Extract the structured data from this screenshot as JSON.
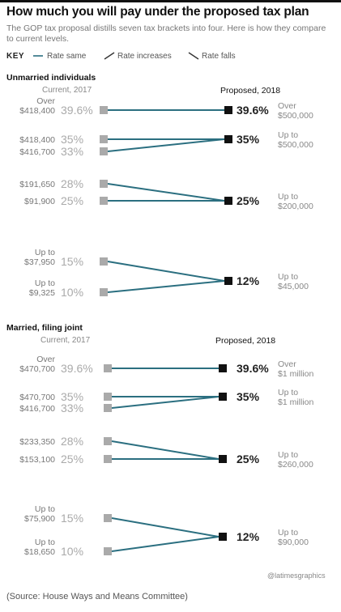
{
  "title": "How much you will pay under the proposed tax plan",
  "subtitle": "The GOP tax proposal distills seven tax brackets into four. Here is how they compare to current levels.",
  "key": {
    "label": "KEY",
    "same": "Rate same",
    "increase": "Rate increases",
    "fall": "Rate falls"
  },
  "colors": {
    "line": "#2b6f80",
    "current_marker": "#aaaaaa",
    "proposed_marker": "#111111"
  },
  "source": "(Source: House Ways and Means Committee)",
  "credit": "@latimesgraphics",
  "chart_data": [
    {
      "type": "slope",
      "title": "Unmarried individuals",
      "current_label": "Current, 2017",
      "proposed_label": "Proposed, 2018",
      "current": [
        {
          "rate": "39.6%",
          "rate_value": 39.6,
          "threshold_lines": [
            "Over",
            "$418,400"
          ]
        },
        {
          "rate": "35%",
          "rate_value": 35,
          "threshold_lines": [
            "$418,400"
          ]
        },
        {
          "rate": "33%",
          "rate_value": 33,
          "threshold_lines": [
            "$416,700"
          ]
        },
        {
          "rate": "28%",
          "rate_value": 28,
          "threshold_lines": [
            "$191,650"
          ]
        },
        {
          "rate": "25%",
          "rate_value": 25,
          "threshold_lines": [
            "$91,900"
          ]
        },
        {
          "rate": "15%",
          "rate_value": 15,
          "threshold_lines": [
            "Up to",
            "$37,950"
          ]
        },
        {
          "rate": "10%",
          "rate_value": 10,
          "threshold_lines": [
            "Up to",
            "$9,325"
          ]
        }
      ],
      "proposed": [
        {
          "rate": "39.6%",
          "rate_value": 39.6,
          "income_lines": [
            "Over",
            "$500,000"
          ]
        },
        {
          "rate": "35%",
          "rate_value": 35,
          "income_lines": [
            "Up to",
            "$500,000"
          ]
        },
        {
          "rate": "25%",
          "rate_value": 25,
          "income_lines": [
            "Up to",
            "$200,000"
          ]
        },
        {
          "rate": "12%",
          "rate_value": 12,
          "income_lines": [
            "Up to",
            "$45,000"
          ]
        }
      ],
      "links": [
        [
          0,
          0
        ],
        [
          1,
          1
        ],
        [
          2,
          1
        ],
        [
          3,
          2
        ],
        [
          4,
          2
        ],
        [
          5,
          3
        ],
        [
          6,
          3
        ]
      ]
    },
    {
      "type": "slope",
      "title": "Married, filing joint",
      "current_label": "Current, 2017",
      "proposed_label": "Proposed, 2018",
      "current": [
        {
          "rate": "39.6%",
          "rate_value": 39.6,
          "threshold_lines": [
            "Over",
            "$470,700"
          ]
        },
        {
          "rate": "35%",
          "rate_value": 35,
          "threshold_lines": [
            "$470,700"
          ]
        },
        {
          "rate": "33%",
          "rate_value": 33,
          "threshold_lines": [
            "$416,700"
          ]
        },
        {
          "rate": "28%",
          "rate_value": 28,
          "threshold_lines": [
            "$233,350"
          ]
        },
        {
          "rate": "25%",
          "rate_value": 25,
          "threshold_lines": [
            "$153,100"
          ]
        },
        {
          "rate": "15%",
          "rate_value": 15,
          "threshold_lines": [
            "Up to",
            "$75,900"
          ]
        },
        {
          "rate": "10%",
          "rate_value": 10,
          "threshold_lines": [
            "Up to",
            "$18,650"
          ]
        }
      ],
      "proposed": [
        {
          "rate": "39.6%",
          "rate_value": 39.6,
          "income_lines": [
            "Over",
            "$1 million"
          ]
        },
        {
          "rate": "35%",
          "rate_value": 35,
          "income_lines": [
            "Up to",
            "$1 million"
          ]
        },
        {
          "rate": "25%",
          "rate_value": 25,
          "income_lines": [
            "Up to",
            "$260,000"
          ]
        },
        {
          "rate": "12%",
          "rate_value": 12,
          "income_lines": [
            "Up to",
            "$90,000"
          ]
        }
      ],
      "links": [
        [
          0,
          0
        ],
        [
          1,
          1
        ],
        [
          2,
          1
        ],
        [
          3,
          2
        ],
        [
          4,
          2
        ],
        [
          5,
          3
        ],
        [
          6,
          3
        ]
      ]
    }
  ]
}
